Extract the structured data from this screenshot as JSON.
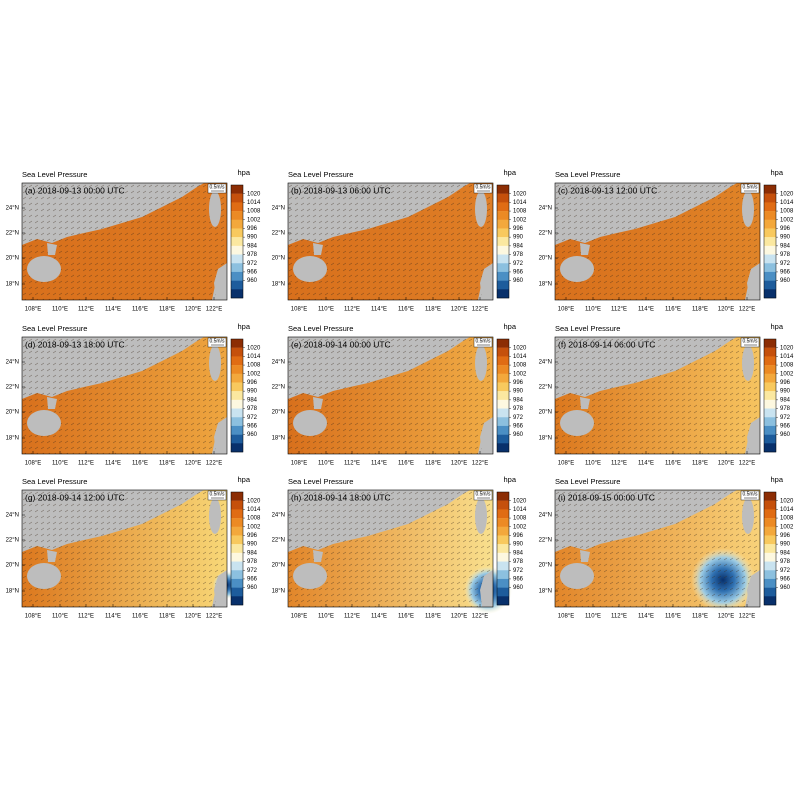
{
  "panels": [
    {
      "title": "Sea Level Pressure",
      "units": "hpa",
      "label": "(a) 2018-09-13 00:00 UTC",
      "vector_ref": "0.5m/s"
    },
    {
      "title": "Sea Level Pressure",
      "units": "hpa",
      "label": "(b) 2018-09-13 06:00 UTC",
      "vector_ref": "0.5m/s"
    },
    {
      "title": "Sea Level Pressure",
      "units": "hpa",
      "label": "(c) 2018-09-13 12:00 UTC",
      "vector_ref": "0.5m/s"
    },
    {
      "title": "Sea Level Pressure",
      "units": "hpa",
      "label": "(d) 2018-09-13 18:00 UTC",
      "vector_ref": "0.5m/s"
    },
    {
      "title": "Sea Level Pressure",
      "units": "hpa",
      "label": "(e) 2018-09-14 00:00 UTC",
      "vector_ref": "0.5m/s"
    },
    {
      "title": "Sea Level Pressure",
      "units": "hpa",
      "label": "(f) 2018-09-14 06:00 UTC",
      "vector_ref": "0.5m/s"
    },
    {
      "title": "Sea Level Pressure",
      "units": "hpa",
      "label": "(g) 2018-09-14 12:00 UTC",
      "vector_ref": "0.5m/s"
    },
    {
      "title": "Sea Level Pressure",
      "units": "hpa",
      "label": "(h) 2018-09-14 18:00 UTC",
      "vector_ref": "0.5m/s"
    },
    {
      "title": "Sea Level Pressure",
      "units": "hpa",
      "label": "(i) 2018-09-15 00:00 UTC",
      "vector_ref": "0.5m/s"
    }
  ],
  "colorbar": {
    "ticks": [
      1020,
      1014,
      1008,
      1002,
      996,
      990,
      984,
      978,
      972,
      966,
      960
    ],
    "colors": [
      "#8c2d04",
      "#c5500c",
      "#e06c14",
      "#ec8a24",
      "#f3a83c",
      "#f8c95e",
      "#fbe8a0",
      "#fdf8e0",
      "#c9e3f0",
      "#8cc0df",
      "#4b8fc4",
      "#1d5c9c",
      "#08306b"
    ]
  },
  "x_ticks": [
    "108°E",
    "110°E",
    "112°E",
    "114°E",
    "116°E",
    "118°E",
    "120°E",
    "122°E"
  ],
  "y_ticks": [
    "24°N",
    "22°N",
    "20°N",
    "18°N"
  ]
}
